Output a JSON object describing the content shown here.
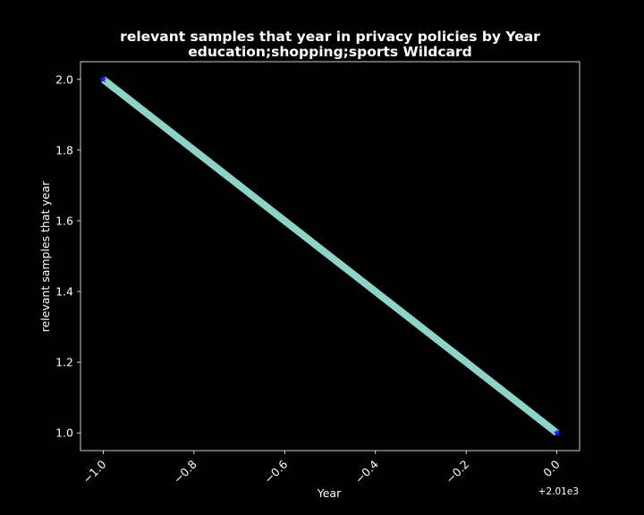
{
  "chart_data": {
    "type": "line",
    "title": "relevant samples that year in privacy policies by Year",
    "subtitle": "education;shopping;sports Wildcard",
    "xlabel": "Year",
    "ylabel": "relevant samples that year",
    "x_offset_label": "+2.01e3",
    "x_ticks": [
      "−1.0",
      "−0.8",
      "−0.6",
      "−0.4",
      "−0.2",
      "0.0"
    ],
    "y_ticks": [
      "1.0",
      "1.2",
      "1.4",
      "1.6",
      "1.8",
      "2.0"
    ],
    "xlim": [
      -1.05,
      0.05
    ],
    "ylim": [
      0.95,
      2.05
    ],
    "series": [
      {
        "x": [
          -1.0,
          0.0
        ],
        "y": [
          2.0,
          1.0
        ]
      }
    ],
    "line_color": "#8dd3c7",
    "marker_color": "#1f1fff",
    "background": "#000000",
    "axis_color": "#ffffff",
    "grid": false
  }
}
